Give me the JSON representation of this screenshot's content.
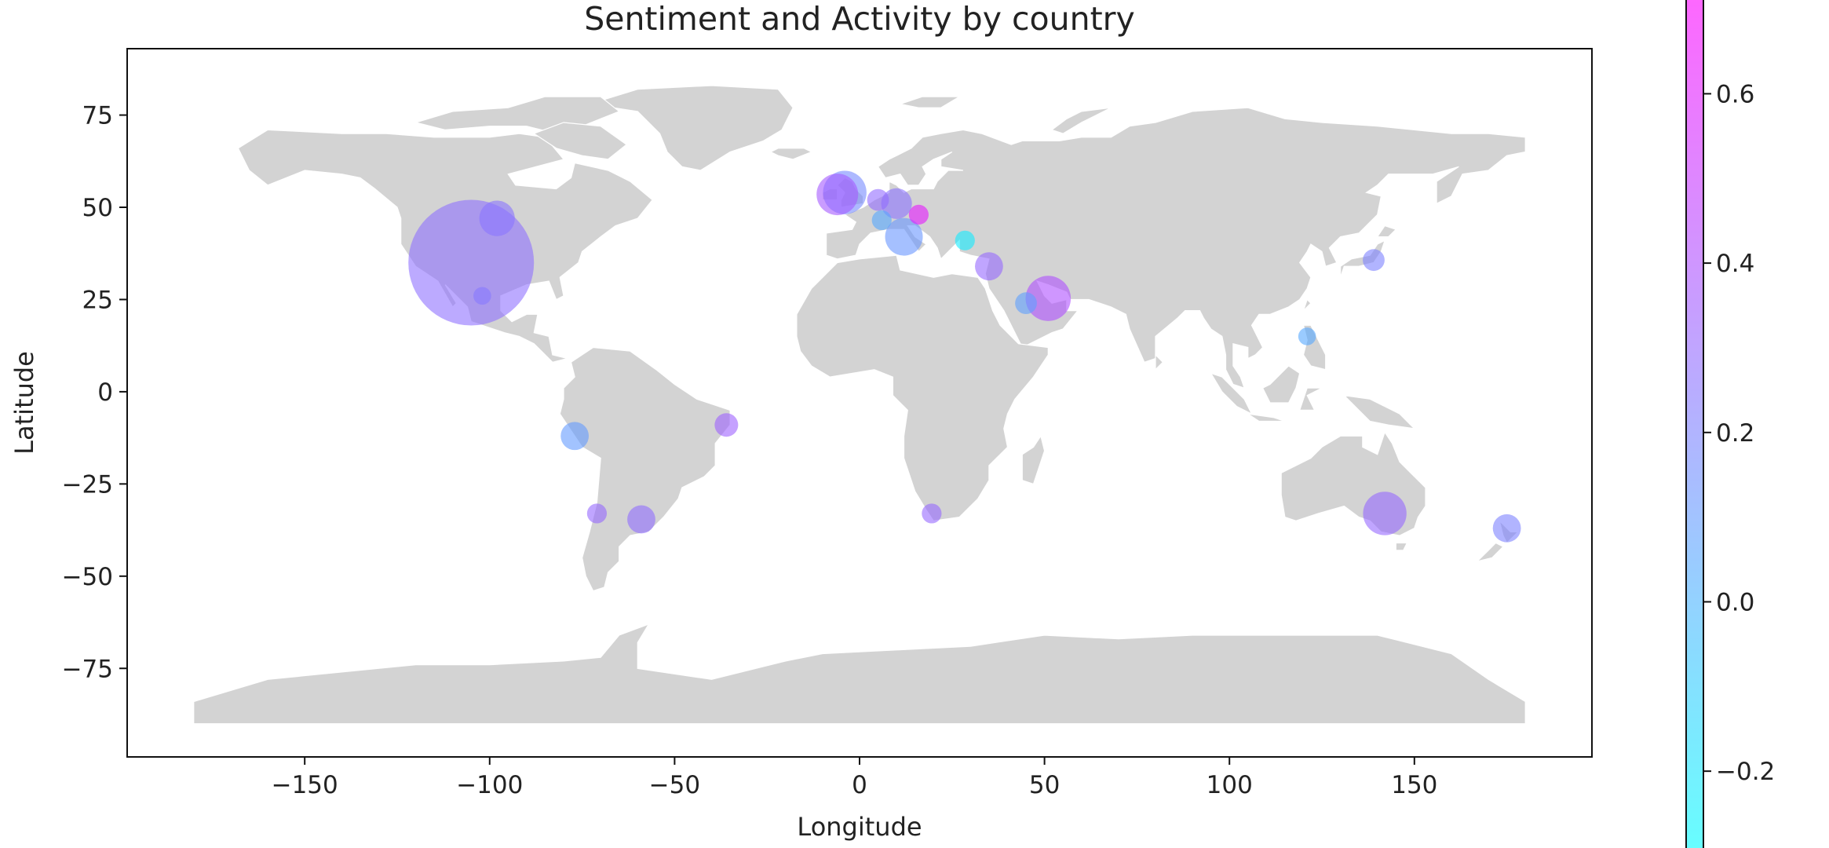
{
  "chart_data": {
    "type": "scatter",
    "title": "Sentiment and Activity by country",
    "xlabel": "Longitude",
    "ylabel": "Latitude",
    "xlim": [
      -198,
      198
    ],
    "ylim": [
      -99,
      93
    ],
    "xticks": [
      -150,
      -100,
      -50,
      0,
      50,
      100,
      150
    ],
    "yticks": [
      -75,
      -50,
      -25,
      0,
      25,
      50,
      75
    ],
    "grid": false,
    "basemap": "world-land",
    "colorbar": {
      "range": [
        -0.3,
        0.72
      ],
      "ticks": [
        -0.2,
        0.0,
        0.2,
        0.4,
        0.6
      ],
      "colormap": "cool",
      "alpha": 0.6
    },
    "points": [
      {
        "lon": -105,
        "lat": 35,
        "sentiment": 0.27,
        "activity": 100
      },
      {
        "lon": -98,
        "lat": 47,
        "sentiment": 0.25,
        "activity": 8
      },
      {
        "lon": -102,
        "lat": 26,
        "sentiment": 0.24,
        "activity": 2
      },
      {
        "lon": -6,
        "lat": 53.5,
        "sentiment": 0.36,
        "activity": 11
      },
      {
        "lon": -4,
        "lat": 54,
        "sentiment": 0.17,
        "activity": 12
      },
      {
        "lon": 5,
        "lat": 52,
        "sentiment": 0.29,
        "activity": 3
      },
      {
        "lon": 10,
        "lat": 51,
        "sentiment": 0.26,
        "activity": 6
      },
      {
        "lon": 16,
        "lat": 48,
        "sentiment": 0.62,
        "activity": 2.5
      },
      {
        "lon": 6,
        "lat": 46.5,
        "sentiment": 0.05,
        "activity": 2.5
      },
      {
        "lon": 12,
        "lat": 42,
        "sentiment": 0.12,
        "activity": 9
      },
      {
        "lon": 28.5,
        "lat": 41,
        "sentiment": -0.22,
        "activity": 2.5
      },
      {
        "lon": 35,
        "lat": 34,
        "sentiment": 0.3,
        "activity": 5
      },
      {
        "lon": 51,
        "lat": 25.3,
        "sentiment": 0.4,
        "activity": 13
      },
      {
        "lon": 45,
        "lat": 24,
        "sentiment": 0.08,
        "activity": 3
      },
      {
        "lon": 139,
        "lat": 35.7,
        "sentiment": 0.2,
        "activity": 3
      },
      {
        "lon": 121,
        "lat": 15,
        "sentiment": 0.05,
        "activity": 2
      },
      {
        "lon": 142,
        "lat": -33,
        "sentiment": 0.3,
        "activity": 12
      },
      {
        "lon": 175,
        "lat": -37,
        "sentiment": 0.2,
        "activity": 5
      },
      {
        "lon": -77,
        "lat": -12,
        "sentiment": 0.1,
        "activity": 5
      },
      {
        "lon": -36,
        "lat": -9,
        "sentiment": 0.33,
        "activity": 3.5
      },
      {
        "lon": -71,
        "lat": -33,
        "sentiment": 0.3,
        "activity": 2.5
      },
      {
        "lon": -59,
        "lat": -34.6,
        "sentiment": 0.28,
        "activity": 5
      },
      {
        "lon": 19.5,
        "lat": -33,
        "sentiment": 0.3,
        "activity": 2.5
      }
    ]
  }
}
